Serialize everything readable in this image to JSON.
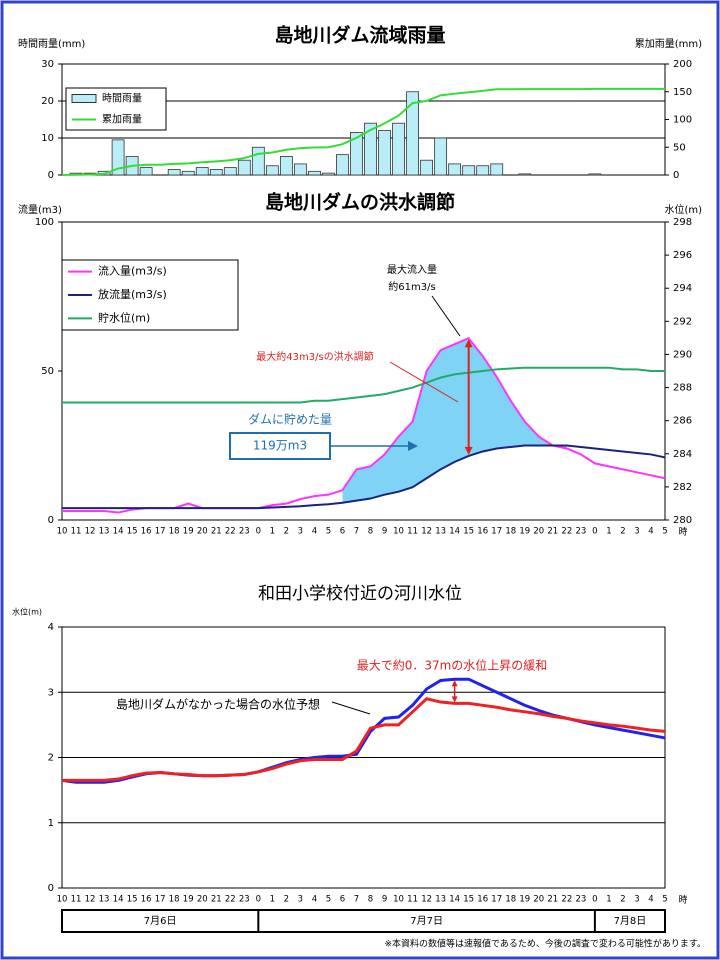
{
  "chart_data": [
    {
      "type": "bar",
      "title": "島地川ダム流域雨量",
      "ylabel": "時間雨量(mm)",
      "y2label": "累加雨量(mm)",
      "ylim": [
        0,
        30
      ],
      "yticks": [
        0,
        10,
        20,
        30
      ],
      "y2lim": [
        0,
        200
      ],
      "y2ticks": [
        0,
        50,
        100,
        150,
        200
      ],
      "grid": true,
      "legend": "upper left",
      "series": [
        {
          "name": "時間雨量",
          "type": "bar",
          "color": "#b9eef9",
          "values": [
            0,
            0.5,
            0.5,
            1,
            9.5,
            5,
            2,
            0,
            1.5,
            1,
            2,
            1.5,
            2,
            4,
            7.5,
            2.5,
            5,
            3,
            1,
            0.5,
            5.5,
            11.5,
            14,
            12,
            14,
            22.5,
            4,
            10,
            3,
            2.5,
            2.5,
            3,
            0,
            0.3,
            0,
            0,
            0,
            0,
            0.3,
            0,
            0,
            0,
            0,
            0
          ]
        },
        {
          "name": "累加雨量",
          "type": "line",
          "axis": "y2",
          "color": "#33dd33",
          "values": [
            0,
            0.5,
            1,
            2,
            11.5,
            16.5,
            18.5,
            18.5,
            20,
            21,
            23,
            24.5,
            26.5,
            30.5,
            38,
            40.5,
            45.5,
            48.5,
            49.5,
            50,
            55.5,
            67,
            81,
            93,
            107,
            129.5,
            133.5,
            143.5,
            146.5,
            149,
            151.5,
            154.5,
            154.5,
            154.8,
            154.8,
            154.8,
            154.8,
            154.8,
            155.1,
            155.1,
            155.1,
            155.1,
            155.1,
            155.1
          ]
        }
      ]
    },
    {
      "type": "line",
      "title": "島地川ダムの洪水調節",
      "ylabel": "流量(m3)",
      "y2label": "水位(m)",
      "xlabel": "時",
      "categories": [
        "10",
        "11",
        "12",
        "13",
        "14",
        "15",
        "16",
        "17",
        "18",
        "19",
        "20",
        "21",
        "22",
        "23",
        "0",
        "1",
        "2",
        "3",
        "4",
        "5",
        "6",
        "7",
        "8",
        "9",
        "10",
        "11",
        "12",
        "13",
        "14",
        "15",
        "16",
        "17",
        "18",
        "19",
        "20",
        "21",
        "22",
        "23",
        "0",
        "1",
        "2",
        "3",
        "4",
        "5"
      ],
      "ylim": [
        0,
        100
      ],
      "yticks": [
        0,
        50,
        100
      ],
      "y2lim": [
        280,
        298
      ],
      "y2ticks": [
        280,
        282,
        284,
        286,
        288,
        290,
        292,
        294,
        296,
        298
      ],
      "grid": false,
      "legend": "upper left",
      "series": [
        {
          "name": "流入量(m3/s)",
          "color": "#ff33ff",
          "values": [
            3,
            3,
            3,
            3,
            2.5,
            3.5,
            4,
            4,
            4,
            5.5,
            4,
            4,
            4,
            4,
            4,
            5,
            5.5,
            7,
            8,
            8.5,
            10,
            17,
            18,
            22,
            28,
            33,
            50,
            57,
            59,
            61,
            55,
            48,
            40,
            33,
            28,
            25,
            24,
            22,
            19,
            18,
            17,
            16,
            15,
            14
          ]
        },
        {
          "name": "放流量(m3/s)",
          "color": "#1a237e",
          "values": [
            4,
            4,
            4,
            4,
            4,
            4,
            4,
            4,
            4,
            4,
            4,
            4,
            4,
            4,
            4,
            4.2,
            4.4,
            4.6,
            5,
            5.3,
            5.8,
            6.5,
            7.2,
            8.5,
            9.5,
            11,
            14,
            17,
            19.5,
            21.5,
            23,
            24,
            24.5,
            25,
            25,
            25,
            25,
            24.5,
            24,
            23.5,
            23,
            22.5,
            22,
            21
          ]
        },
        {
          "name": "貯水位(m)",
          "axis": "y2",
          "color": "#22aa66",
          "values": [
            287.1,
            287.1,
            287.1,
            287.1,
            287.1,
            287.1,
            287.1,
            287.1,
            287.1,
            287.1,
            287.1,
            287.1,
            287.1,
            287.1,
            287.1,
            287.1,
            287.1,
            287.1,
            287.2,
            287.2,
            287.3,
            287.4,
            287.5,
            287.6,
            287.8,
            288.0,
            288.3,
            288.6,
            288.8,
            288.9,
            289.0,
            289.1,
            289.15,
            289.2,
            289.2,
            289.2,
            289.2,
            289.2,
            289.2,
            289.2,
            289.1,
            289.1,
            289.0,
            289.0
          ]
        }
      ],
      "annotations": [
        "最大流入量",
        "約61m3/s",
        "最大約43m3/sの洪水調節",
        "ダムに貯めた量",
        "119万m3"
      ]
    },
    {
      "type": "line",
      "title": "和田小学校付近の河川水位",
      "ylabel": "水位(m)",
      "xlabel": "時",
      "categories": [
        "10",
        "11",
        "12",
        "13",
        "14",
        "15",
        "16",
        "17",
        "18",
        "19",
        "20",
        "21",
        "22",
        "23",
        "0",
        "1",
        "2",
        "3",
        "4",
        "5",
        "6",
        "7",
        "8",
        "9",
        "10",
        "11",
        "12",
        "13",
        "14",
        "15",
        "16",
        "17",
        "18",
        "19",
        "20",
        "21",
        "22",
        "23",
        "0",
        "1",
        "2",
        "3",
        "4",
        "5"
      ],
      "ylim": [
        0,
        4
      ],
      "yticks": [
        0,
        1,
        2,
        3,
        4
      ],
      "grid": true,
      "series": [
        {
          "color": "#2222ee",
          "values": [
            1.65,
            1.62,
            1.62,
            1.62,
            1.65,
            1.7,
            1.75,
            1.77,
            1.75,
            1.73,
            1.72,
            1.72,
            1.73,
            1.74,
            1.78,
            1.85,
            1.92,
            1.97,
            2.0,
            2.02,
            2.02,
            2.05,
            2.4,
            2.6,
            2.62,
            2.8,
            3.05,
            3.18,
            3.2,
            3.2,
            3.1,
            3.0,
            2.9,
            2.8,
            2.72,
            2.65,
            2.6,
            2.55,
            2.5,
            2.46,
            2.42,
            2.38,
            2.34,
            2.3
          ]
        },
        {
          "color": "#ee2222",
          "values": [
            1.65,
            1.65,
            1.65,
            1.65,
            1.67,
            1.72,
            1.76,
            1.77,
            1.75,
            1.74,
            1.72,
            1.72,
            1.73,
            1.74,
            1.78,
            1.83,
            1.9,
            1.95,
            1.97,
            1.97,
            1.97,
            2.1,
            2.45,
            2.5,
            2.5,
            2.7,
            2.9,
            2.85,
            2.83,
            2.83,
            2.8,
            2.77,
            2.73,
            2.7,
            2.67,
            2.63,
            2.6,
            2.56,
            2.53,
            2.5,
            2.48,
            2.45,
            2.42,
            2.4
          ]
        }
      ],
      "annotations": [
        "最大で約0．37mの水位上昇の緩和",
        "島地川ダムがなかった場合の水位予想"
      ],
      "date_labels": [
        "7月6日",
        "7月7日",
        "7月8日"
      ]
    }
  ],
  "footnote": "※本資料の数値等は速報値であるため、今後の調査で変わる可能性があります。"
}
